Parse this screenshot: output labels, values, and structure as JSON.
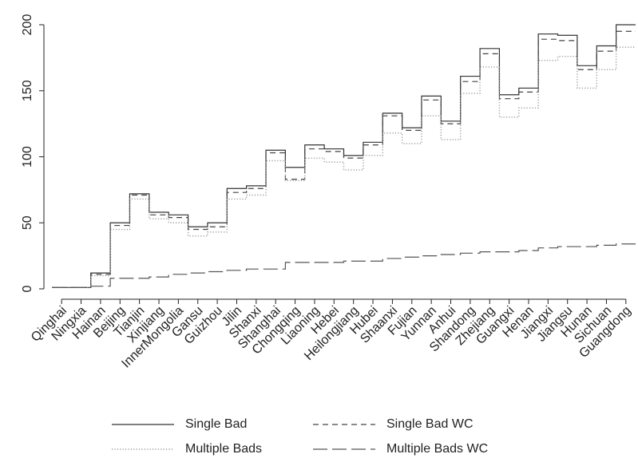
{
  "chart_data": {
    "type": "line",
    "step": true,
    "categories": [
      "Qinghai",
      "Ningxia",
      "Hainan",
      "Beijing",
      "Tianjin",
      "Xinjiang",
      "InnerMongolia",
      "Gansu",
      "Guizhou",
      "Jilin",
      "Shanxi",
      "Shanghai",
      "Chongqing",
      "Liaoning",
      "Hebei",
      "Heilongjiang",
      "Hubei",
      "Shaanxi",
      "Fujian",
      "Yunnan",
      "Anhui",
      "Shandong",
      "Zhejiang",
      "Guangxi",
      "Henan",
      "Jiangxi",
      "Jiangsu",
      "Hunan",
      "Sichuan",
      "Guangdong"
    ],
    "ylim": [
      0,
      200
    ],
    "yticks": [
      0,
      50,
      100,
      150,
      200
    ],
    "grid": false,
    "legend_position": "bottom",
    "title": "",
    "xlabel": "",
    "ylabel": "",
    "series": [
      {
        "name": "Single Bad",
        "dash": "solid",
        "color": "#333333",
        "values": [
          1,
          1,
          12,
          50,
          72,
          58,
          56,
          47,
          50,
          76,
          78,
          105,
          92,
          109,
          106,
          101,
          111,
          133,
          122,
          146,
          127,
          161,
          182,
          147,
          152,
          193,
          192,
          169,
          184,
          200
        ]
      },
      {
        "name": "Single Bad WC",
        "dash": "short",
        "color": "#444444",
        "values": [
          1,
          1,
          11,
          48,
          71,
          56,
          54,
          45,
          47,
          73,
          76,
          103,
          83,
          106,
          104,
          99,
          109,
          131,
          120,
          143,
          125,
          157,
          178,
          144,
          149,
          189,
          188,
          166,
          180,
          195
        ]
      },
      {
        "name": "Multiple Bads",
        "dash": "dotted",
        "color": "#999999",
        "values": [
          1,
          1,
          10,
          45,
          68,
          53,
          50,
          40,
          43,
          68,
          71,
          97,
          82,
          99,
          96,
          90,
          101,
          118,
          110,
          131,
          113,
          148,
          168,
          130,
          137,
          173,
          176,
          152,
          166,
          183
        ]
      },
      {
        "name": "Multiple Bads WC",
        "dash": "long",
        "color": "#555555",
        "values": [
          1,
          1,
          2,
          8,
          8,
          9,
          11,
          12,
          13,
          14,
          15,
          15,
          20,
          20,
          20,
          21,
          21,
          23,
          24,
          25,
          26,
          27,
          28,
          28,
          29,
          31,
          32,
          32,
          33,
          34
        ]
      }
    ]
  }
}
